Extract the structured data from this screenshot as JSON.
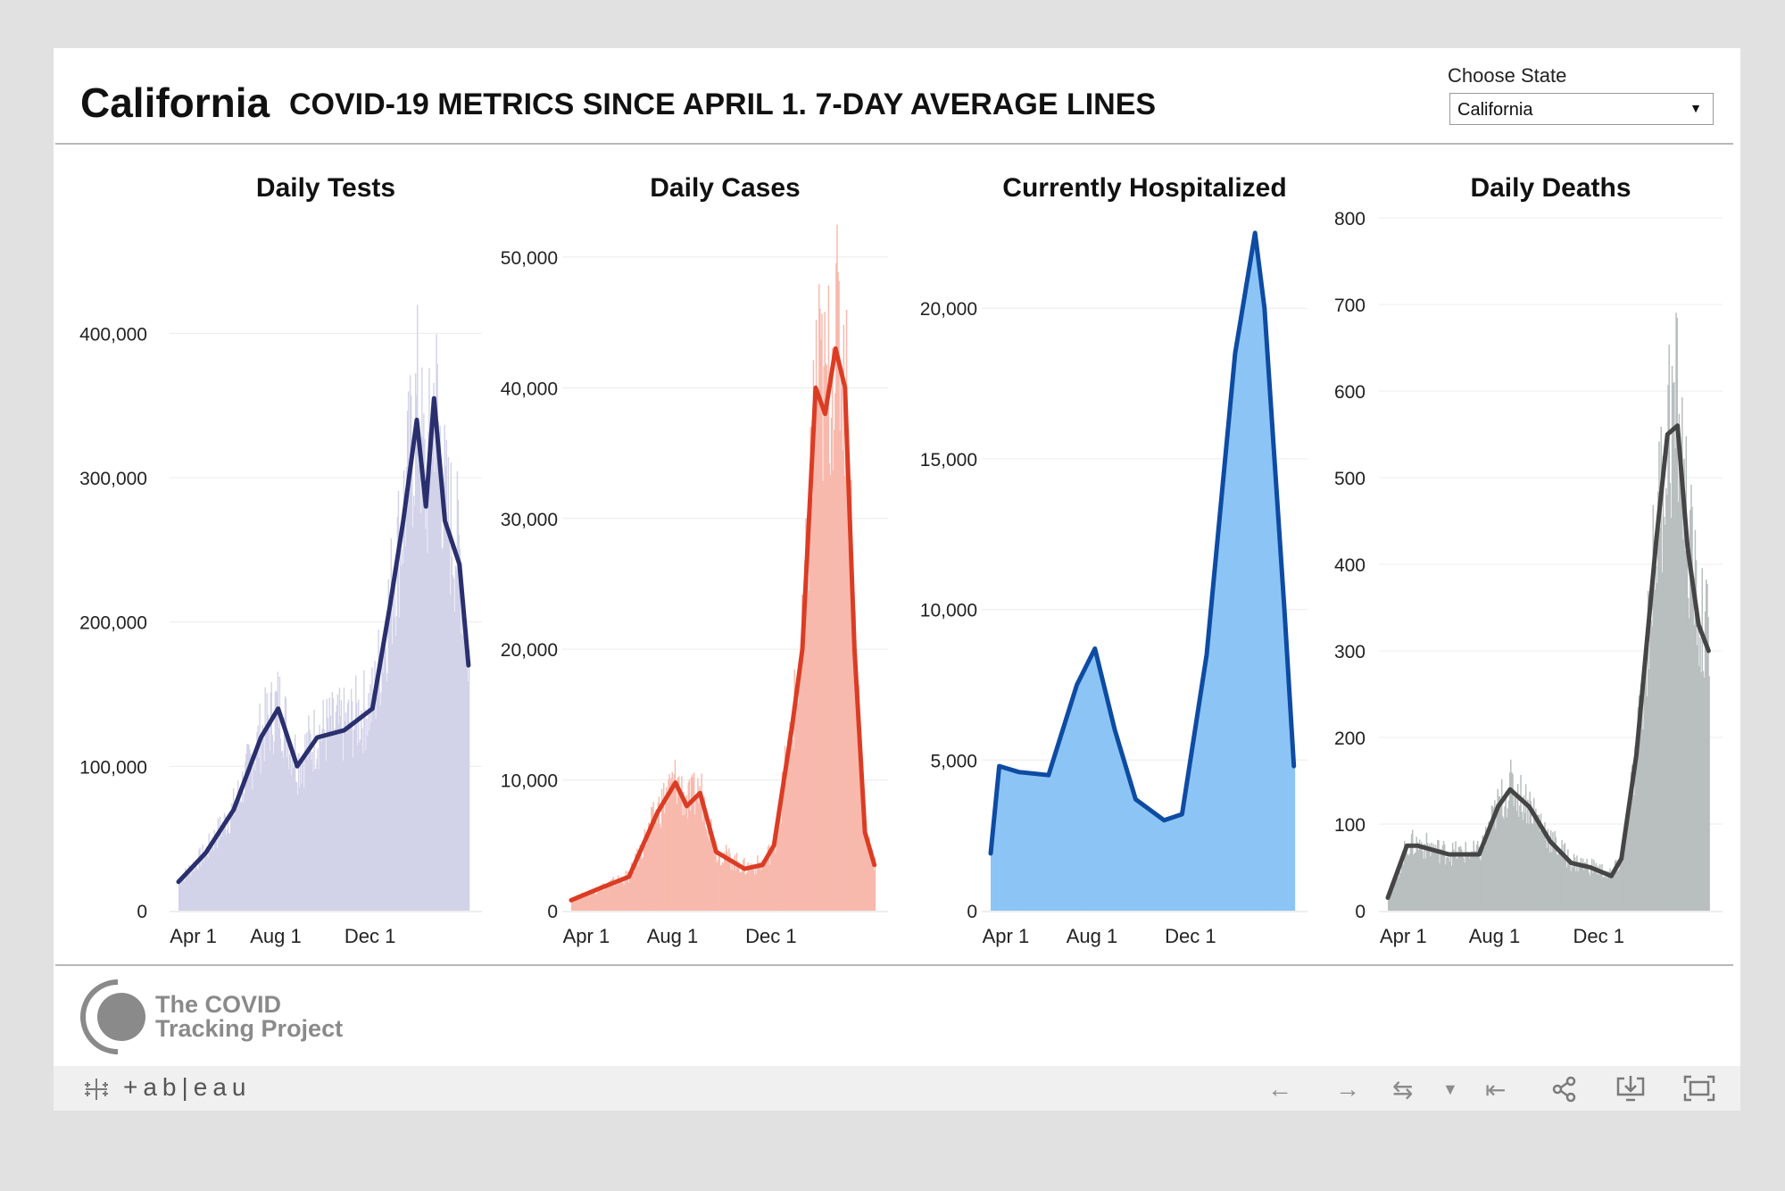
{
  "header": {
    "state": "California",
    "headline": "COVID-19 METRICS SINCE APRIL 1. 7-DAY AVERAGE LINES",
    "choose_label": "Choose State",
    "select_value": "California"
  },
  "footer": {
    "logo_line1": "The COVID",
    "logo_line2": "Tracking Project",
    "tableau": "+ab|eau"
  },
  "toolbar_icons": [
    "undo-icon",
    "redo-icon",
    "revert-icon",
    "dropdown-caret-icon",
    "reset-icon",
    "share-icon",
    "download-icon",
    "fullscreen-icon"
  ],
  "chart_data": [
    {
      "type": "bar",
      "title": "Daily Tests",
      "x_labels": [
        "Apr 1",
        "Aug 1",
        "Dec 1"
      ],
      "y_ticks": [
        "0",
        "100,000",
        "200,000",
        "300,000",
        "400,000"
      ],
      "ylim": [
        0,
        480000
      ],
      "bar_color": "#d2d2e9",
      "line_color": "#2a2f6e",
      "grid": true,
      "series_avg": [
        {
          "date": "Apr 1",
          "value": 20000
        },
        {
          "date": "May 1",
          "value": 40000
        },
        {
          "date": "Jun 1",
          "value": 70000
        },
        {
          "date": "Jul 1",
          "value": 120000
        },
        {
          "date": "Jul 20",
          "value": 140000
        },
        {
          "date": "Aug 10",
          "value": 100000
        },
        {
          "date": "Sep 1",
          "value": 120000
        },
        {
          "date": "Oct 1",
          "value": 125000
        },
        {
          "date": "Nov 1",
          "value": 140000
        },
        {
          "date": "Nov 20",
          "value": 210000
        },
        {
          "date": "Dec 5",
          "value": 270000
        },
        {
          "date": "Dec 20",
          "value": 340000
        },
        {
          "date": "Dec 30",
          "value": 280000
        },
        {
          "date": "Jan 8",
          "value": 355000
        },
        {
          "date": "Jan 20",
          "value": 270000
        },
        {
          "date": "Feb 5",
          "value": 240000
        },
        {
          "date": "Feb 15",
          "value": 170000
        }
      ]
    },
    {
      "type": "bar",
      "title": "Daily Cases",
      "x_labels": [
        "Apr 1",
        "Aug 1",
        "Dec 1"
      ],
      "y_ticks": [
        "0",
        "10,000",
        "20,000",
        "30,000",
        "40,000",
        "50,000"
      ],
      "ylim": [
        0,
        53000
      ],
      "bar_color": "#f8b9ad",
      "line_color": "#db3c24",
      "grid": true,
      "series_avg": [
        {
          "date": "Apr 1",
          "value": 800
        },
        {
          "date": "May 1",
          "value": 1700
        },
        {
          "date": "Jun 1",
          "value": 2600
        },
        {
          "date": "Jul 1",
          "value": 7500
        },
        {
          "date": "Jul 20",
          "value": 9800
        },
        {
          "date": "Aug 1",
          "value": 8000
        },
        {
          "date": "Aug 15",
          "value": 9000
        },
        {
          "date": "Sep 1",
          "value": 4500
        },
        {
          "date": "Oct 1",
          "value": 3200
        },
        {
          "date": "Oct 20",
          "value": 3500
        },
        {
          "date": "Nov 1",
          "value": 5000
        },
        {
          "date": "Nov 20",
          "value": 14000
        },
        {
          "date": "Dec 1",
          "value": 20000
        },
        {
          "date": "Dec 15",
          "value": 40000
        },
        {
          "date": "Dec 25",
          "value": 38000
        },
        {
          "date": "Jan 5",
          "value": 43000
        },
        {
          "date": "Jan 15",
          "value": 40000
        },
        {
          "date": "Jan 25",
          "value": 20000
        },
        {
          "date": "Feb 5",
          "value": 6000
        },
        {
          "date": "Feb 15",
          "value": 3500
        }
      ]
    },
    {
      "type": "area",
      "title": "Currently Hospitalized",
      "x_labels": [
        "Apr 1",
        "Aug 1",
        "Dec 1"
      ],
      "y_ticks": [
        "0",
        "5,000",
        "10,000",
        "15,000",
        "20,000"
      ],
      "ylim": [
        0,
        23000
      ],
      "bar_color": "#8cc5f5",
      "line_color": "#0e4ba3",
      "grid": true,
      "series_avg": [
        {
          "date": "Apr 1",
          "value": 1900
        },
        {
          "date": "Apr 10",
          "value": 4800
        },
        {
          "date": "May 1",
          "value": 4600
        },
        {
          "date": "Jun 1",
          "value": 4500
        },
        {
          "date": "Jul 1",
          "value": 7500
        },
        {
          "date": "Jul 20",
          "value": 8700
        },
        {
          "date": "Aug 10",
          "value": 6000
        },
        {
          "date": "Sep 1",
          "value": 3700
        },
        {
          "date": "Oct 1",
          "value": 3000
        },
        {
          "date": "Oct 20",
          "value": 3200
        },
        {
          "date": "Nov 15",
          "value": 8500
        },
        {
          "date": "Dec 15",
          "value": 18500
        },
        {
          "date": "Jan 5",
          "value": 22500
        },
        {
          "date": "Jan 15",
          "value": 20000
        },
        {
          "date": "Feb 5",
          "value": 10000
        },
        {
          "date": "Feb 15",
          "value": 4800
        }
      ]
    },
    {
      "type": "bar",
      "title": "Daily Deaths",
      "x_labels": [
        "Apr 1",
        "Aug 1",
        "Dec 1"
      ],
      "y_ticks": [
        "0",
        "100",
        "200",
        "300",
        "400",
        "500",
        "600",
        "700",
        "800"
      ],
      "ylim": [
        0,
        800
      ],
      "bar_color": "#b9bebe",
      "line_color": "#454545",
      "grid": true,
      "series_avg": [
        {
          "date": "Apr 1",
          "value": 15
        },
        {
          "date": "Apr 20",
          "value": 75
        },
        {
          "date": "May 1",
          "value": 75
        },
        {
          "date": "Jun 1",
          "value": 65
        },
        {
          "date": "Jul 1",
          "value": 65
        },
        {
          "date": "Jul 20",
          "value": 120
        },
        {
          "date": "Aug 1",
          "value": 140
        },
        {
          "date": "Aug 20",
          "value": 120
        },
        {
          "date": "Sep 10",
          "value": 80
        },
        {
          "date": "Oct 1",
          "value": 55
        },
        {
          "date": "Oct 20",
          "value": 50
        },
        {
          "date": "Nov 10",
          "value": 40
        },
        {
          "date": "Nov 20",
          "value": 60
        },
        {
          "date": "Dec 5",
          "value": 180
        },
        {
          "date": "Dec 25",
          "value": 430
        },
        {
          "date": "Jan 5",
          "value": 550
        },
        {
          "date": "Jan 15",
          "value": 560
        },
        {
          "date": "Jan 25",
          "value": 420
        },
        {
          "date": "Feb 5",
          "value": 330
        },
        {
          "date": "Feb 15",
          "value": 300
        }
      ]
    }
  ]
}
